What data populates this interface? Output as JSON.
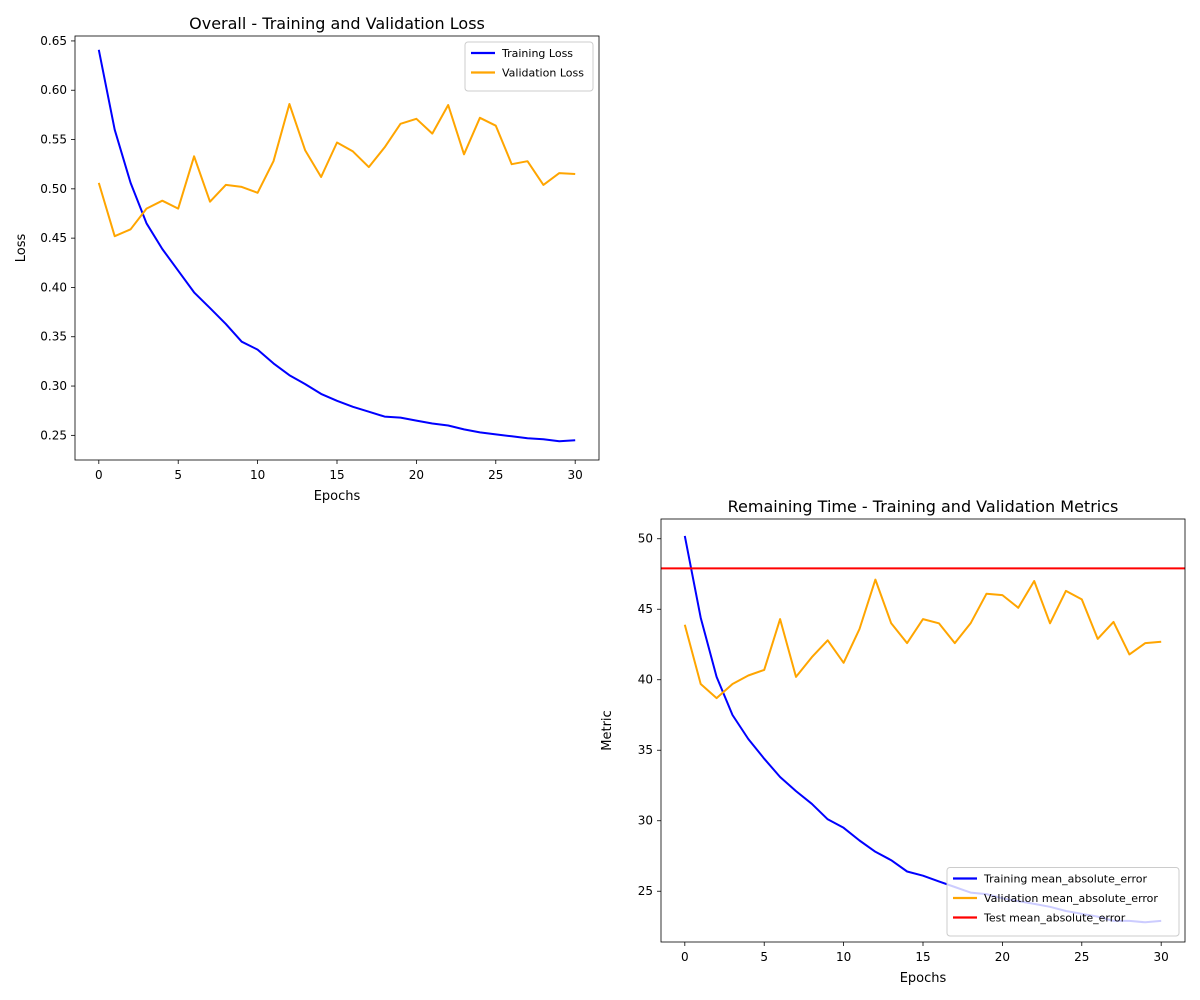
{
  "chart_data": [
    {
      "type": "line",
      "title": "Overall - Training and Validation Loss",
      "xlabel": "Epochs",
      "ylabel": "Loss",
      "xlim": [
        -1.5,
        31.5
      ],
      "ylim": [
        0.225,
        0.655
      ],
      "xticks": [
        0,
        5,
        10,
        15,
        20,
        25,
        30
      ],
      "yticks": [
        0.25,
        0.3,
        0.35,
        0.4,
        0.45,
        0.5,
        0.55,
        0.6,
        0.65
      ],
      "ytick_decimals": 2,
      "legend_position": "top-right",
      "grid": false,
      "x": [
        0,
        1,
        2,
        3,
        4,
        5,
        6,
        7,
        8,
        9,
        10,
        11,
        12,
        13,
        14,
        15,
        16,
        17,
        18,
        19,
        20,
        21,
        22,
        23,
        24,
        25,
        26,
        27,
        28,
        29,
        30
      ],
      "series": [
        {
          "name": "Training Loss",
          "color": "#0000ff",
          "values": [
            0.641,
            0.56,
            0.506,
            0.465,
            0.439,
            0.417,
            0.395,
            0.379,
            0.363,
            0.345,
            0.337,
            0.323,
            0.311,
            0.302,
            0.292,
            0.285,
            0.279,
            0.274,
            0.269,
            0.268,
            0.265,
            0.262,
            0.26,
            0.256,
            0.253,
            0.251,
            0.249,
            0.247,
            0.246,
            0.244,
            0.245
          ]
        },
        {
          "name": "Validation Loss",
          "color": "#ffa500",
          "values": [
            0.506,
            0.452,
            0.459,
            0.48,
            0.488,
            0.48,
            0.533,
            0.487,
            0.504,
            0.502,
            0.496,
            0.528,
            0.586,
            0.539,
            0.512,
            0.547,
            0.538,
            0.522,
            0.542,
            0.566,
            0.571,
            0.556,
            0.585,
            0.535,
            0.572,
            0.564,
            0.525,
            0.528,
            0.504,
            0.516,
            0.515
          ]
        }
      ]
    },
    {
      "type": "line",
      "title": "Remaining Time - Training and Validation Metrics",
      "xlabel": "Epochs",
      "ylabel": "Metric",
      "xlim": [
        -1.5,
        31.5
      ],
      "ylim": [
        21.4,
        51.4
      ],
      "xticks": [
        0,
        5,
        10,
        15,
        20,
        25,
        30
      ],
      "yticks": [
        25,
        30,
        35,
        40,
        45,
        50
      ],
      "ytick_decimals": 0,
      "legend_position": "bottom-right",
      "grid": false,
      "x": [
        0,
        1,
        2,
        3,
        4,
        5,
        6,
        7,
        8,
        9,
        10,
        11,
        12,
        13,
        14,
        15,
        16,
        17,
        18,
        19,
        20,
        21,
        22,
        23,
        24,
        25,
        26,
        27,
        28,
        29,
        30
      ],
      "series": [
        {
          "name": "Training mean_absolute_error",
          "color": "#0000ff",
          "values": [
            50.2,
            44.4,
            40.2,
            37.5,
            35.8,
            34.4,
            33.1,
            32.1,
            31.2,
            30.1,
            29.5,
            28.6,
            27.8,
            27.2,
            26.4,
            26.1,
            25.7,
            25.3,
            24.9,
            24.8,
            24.5,
            24.3,
            24.1,
            23.9,
            23.6,
            23.4,
            23.2,
            22.9,
            22.9,
            22.8,
            22.9
          ]
        },
        {
          "name": "Validation mean_absolute_error",
          "color": "#ffa500",
          "values": [
            43.9,
            39.7,
            38.7,
            39.7,
            40.3,
            40.7,
            44.3,
            40.2,
            41.6,
            42.8,
            41.2,
            43.6,
            47.1,
            44.0,
            42.6,
            44.3,
            44.0,
            42.6,
            44.0,
            46.1,
            46.0,
            45.1,
            47.0,
            44.0,
            46.3,
            45.7,
            42.9,
            44.1,
            41.8,
            42.6,
            42.7
          ]
        },
        {
          "name": "Test mean_absolute_error",
          "color": "#ff0000",
          "hline": 47.9
        }
      ]
    }
  ]
}
